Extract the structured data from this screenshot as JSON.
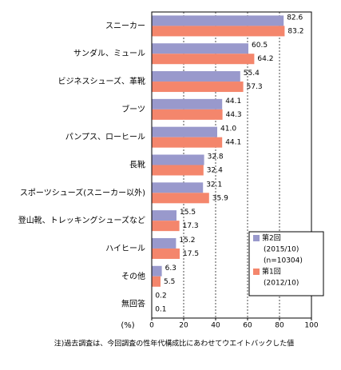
{
  "chart_data": {
    "type": "bar",
    "orientation": "horizontal",
    "categories": [
      "スニーカー",
      "サンダル、ミュール",
      "ビジネスシューズ、革靴",
      "ブーツ",
      "パンプス、ローヒール",
      "長靴",
      "スポーツシューズ(スニーカー以外)",
      "登山靴、トレッキングシューズなど",
      "ハイヒール",
      "その他",
      "無回答"
    ],
    "series": [
      {
        "name": "第2回",
        "period": "(2015/10)",
        "sample": "(n=10304)",
        "color": "#9999cc",
        "values": [
          82.6,
          60.5,
          55.4,
          44.1,
          41.0,
          32.8,
          32.1,
          15.5,
          15.2,
          6.3,
          0.2
        ],
        "value_labels": [
          "82.6",
          "60.5",
          "55.4",
          "44.1",
          "41.0",
          "32.8",
          "32.1",
          "15.5",
          "15.2",
          "6.3",
          "0.2"
        ]
      },
      {
        "name": "第1回",
        "period": "(2012/10)",
        "color": "#f4866c",
        "values": [
          83.2,
          64.2,
          57.3,
          44.3,
          44.1,
          32.4,
          35.9,
          17.3,
          17.5,
          5.5,
          0.1
        ],
        "value_labels": [
          "83.2",
          "64.2",
          "57.3",
          "44.3",
          "44.1",
          "32.4",
          "35.9",
          "17.3",
          "17.5",
          "5.5",
          "0.1"
        ]
      }
    ],
    "xlim": [
      0,
      100
    ],
    "xticks": [
      0,
      20,
      40,
      60,
      80,
      100
    ],
    "grid": true,
    "unit_label": "(%)",
    "footnote": "注)過去調査は、今回調査の性年代構成比にあわせてウエイトバックした値"
  }
}
